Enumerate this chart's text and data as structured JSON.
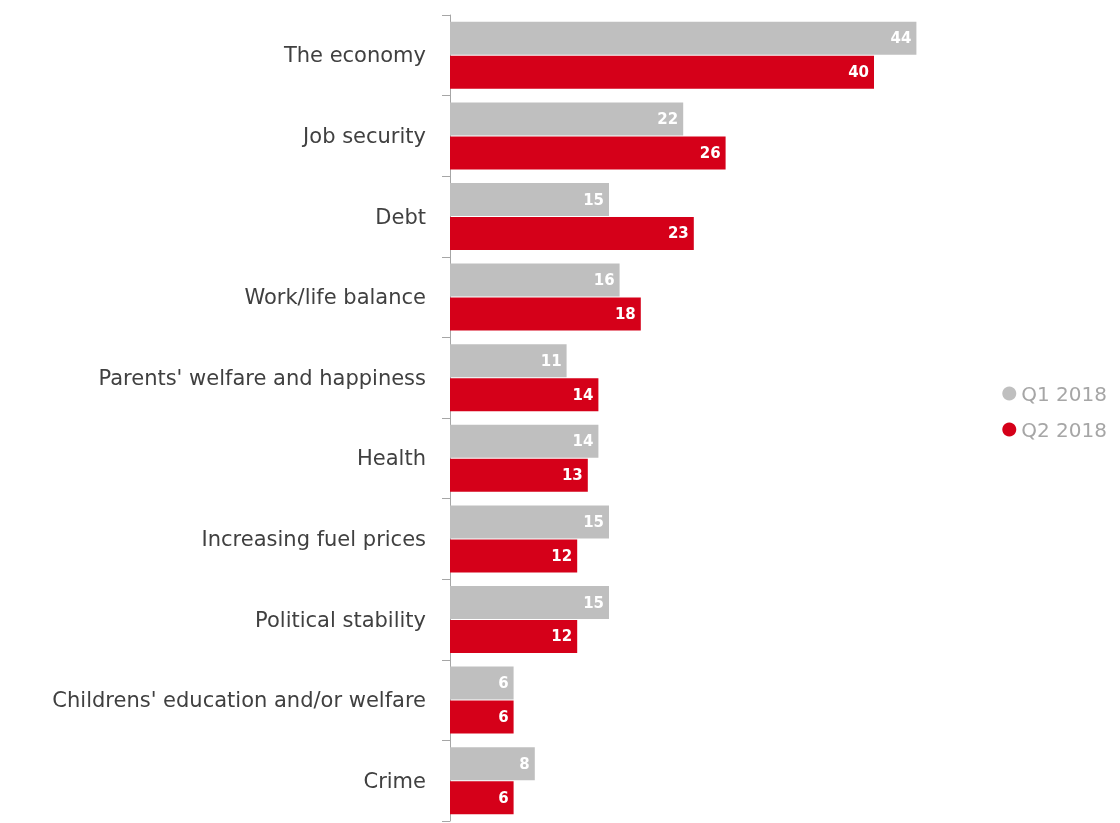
{
  "chart_data": {
    "type": "bar",
    "orientation": "horizontal",
    "categories": [
      "The economy",
      "Job security",
      "Debt",
      "Work/life balance",
      "Parents' welfare and happiness",
      "Health",
      "Increasing fuel prices",
      "Political stability",
      "Childrens' education and/or welfare",
      "Crime"
    ],
    "series": [
      {
        "name": "Q1 2018",
        "color": "#bfbfbf",
        "values": [
          44,
          22,
          15,
          16,
          11,
          14,
          15,
          15,
          6,
          8
        ]
      },
      {
        "name": "Q2 2018",
        "color": "#d50019",
        "values": [
          40,
          26,
          23,
          18,
          14,
          13,
          12,
          12,
          6,
          6
        ]
      }
    ],
    "data_labels": true,
    "legend": "right"
  }
}
